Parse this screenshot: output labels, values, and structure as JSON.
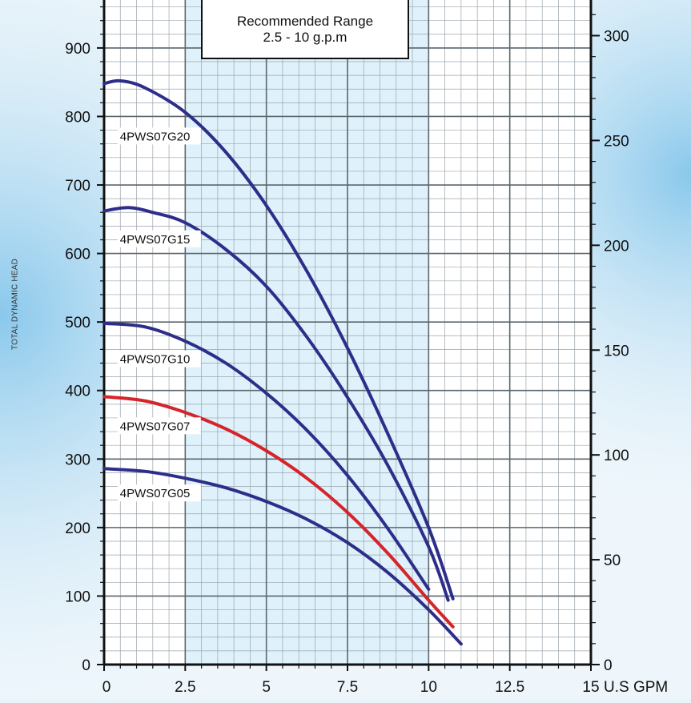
{
  "chart_data": {
    "type": "line",
    "xlabel": "U.S GPM",
    "ylabel": "TOTAL DYNAMIC HEAD",
    "xlim": [
      0,
      15
    ],
    "ylim": [
      0,
      970
    ],
    "y2lim": [
      0,
      317
    ],
    "x_ticks": [
      "0",
      "2.5",
      "5",
      "7.5",
      "10",
      "12.5",
      "15"
    ],
    "y_ticks": [
      "0",
      "100",
      "200",
      "300",
      "400",
      "500",
      "600",
      "700",
      "800",
      "900"
    ],
    "y2_ticks": [
      "0",
      "50",
      "100",
      "150",
      "200",
      "250",
      "300"
    ],
    "grid": true,
    "recommended_range": {
      "title": "Recommended Range",
      "subtitle": "2.5 - 10 g.p.m",
      "x_from": 2.5,
      "x_to": 10
    },
    "series": [
      {
        "name": "4PWS07G20",
        "color": "#2e2e8a",
        "label_at": [
          0.5,
          765
        ],
        "points": [
          [
            0,
            848
          ],
          [
            0.5,
            852
          ],
          [
            1.25,
            842
          ],
          [
            2.5,
            806
          ],
          [
            3.75,
            748
          ],
          [
            5,
            670
          ],
          [
            6.25,
            574
          ],
          [
            7.5,
            462
          ],
          [
            8.75,
            336
          ],
          [
            10,
            200
          ],
          [
            10.75,
            96
          ]
        ]
      },
      {
        "name": "4PWS07G15",
        "color": "#2e2e8a",
        "label_at": [
          0.5,
          615
        ],
        "points": [
          [
            0,
            662
          ],
          [
            0.75,
            667
          ],
          [
            1.5,
            660
          ],
          [
            2.5,
            645
          ],
          [
            3.75,
            606
          ],
          [
            5,
            552
          ],
          [
            6.25,
            478
          ],
          [
            7.5,
            390
          ],
          [
            8.75,
            290
          ],
          [
            10,
            172
          ],
          [
            10.6,
            94
          ]
        ]
      },
      {
        "name": "4PWS07G10",
        "color": "#2e2e8a",
        "label_at": [
          0.5,
          440
        ],
        "points": [
          [
            0,
            498
          ],
          [
            1.25,
            493
          ],
          [
            2.5,
            472
          ],
          [
            3.75,
            440
          ],
          [
            5,
            396
          ],
          [
            6.25,
            342
          ],
          [
            7.5,
            276
          ],
          [
            8.75,
            198
          ],
          [
            10,
            110
          ]
        ]
      },
      {
        "name": "4PWS07G07",
        "color": "#d6242a",
        "label_at": [
          0.5,
          342
        ],
        "points": [
          [
            0,
            391
          ],
          [
            1.25,
            385
          ],
          [
            2.5,
            368
          ],
          [
            3.75,
            344
          ],
          [
            5,
            312
          ],
          [
            6.25,
            272
          ],
          [
            7.5,
            222
          ],
          [
            8.75,
            162
          ],
          [
            10,
            94
          ],
          [
            10.75,
            55
          ]
        ]
      },
      {
        "name": "4PWS07G05",
        "color": "#2e2e8a",
        "label_at": [
          0.5,
          244
        ],
        "points": [
          [
            0,
            286
          ],
          [
            1.25,
            282
          ],
          [
            2.5,
            272
          ],
          [
            3.75,
            258
          ],
          [
            5,
            238
          ],
          [
            6.25,
            212
          ],
          [
            7.5,
            178
          ],
          [
            8.75,
            134
          ],
          [
            10,
            80
          ],
          [
            11,
            30
          ]
        ]
      }
    ]
  }
}
